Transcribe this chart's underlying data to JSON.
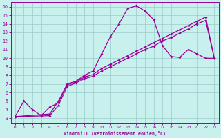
{
  "xlabel": "Windchill (Refroidissement éolien,°C)",
  "bg_color": "#c8f0ec",
  "line_color": "#990099",
  "grid_color": "#99cccc",
  "xlim": [
    -0.5,
    23.5
  ],
  "ylim": [
    2.5,
    16.5
  ],
  "xticks": [
    0,
    1,
    2,
    3,
    4,
    5,
    6,
    7,
    8,
    9,
    10,
    11,
    12,
    13,
    14,
    15,
    16,
    17,
    18,
    19,
    20,
    21,
    22,
    23
  ],
  "yticks": [
    3,
    4,
    5,
    6,
    7,
    8,
    9,
    10,
    11,
    12,
    13,
    14,
    15,
    16
  ],
  "line1_x": [
    0,
    1,
    2,
    3,
    4,
    5,
    6,
    7,
    8,
    9,
    10,
    11,
    12,
    13,
    14,
    15,
    16,
    17,
    18,
    19,
    20,
    21,
    22,
    23
  ],
  "line1_y": [
    3.2,
    5.0,
    4.0,
    3.3,
    4.3,
    4.8,
    7.0,
    7.3,
    8.0,
    8.5,
    10.5,
    12.5,
    14.0,
    15.8,
    16.1,
    15.5,
    14.5,
    11.5,
    10.2,
    10.1,
    11.0,
    10.5,
    10.0,
    10.0
  ],
  "line2_x": [
    0,
    4,
    5,
    6,
    7,
    8,
    9,
    10,
    11,
    12,
    13,
    14,
    15,
    16,
    17,
    18,
    19,
    20,
    21,
    22,
    23
  ],
  "line2_y": [
    3.2,
    3.3,
    4.5,
    6.7,
    7.1,
    7.6,
    7.9,
    8.5,
    9.0,
    9.5,
    10.0,
    10.5,
    11.0,
    11.4,
    12.0,
    12.4,
    12.9,
    13.4,
    14.0,
    14.4,
    10.0
  ],
  "line3_x": [
    0,
    4,
    5,
    6,
    7,
    8,
    9,
    10,
    11,
    12,
    13,
    14,
    15,
    16,
    17,
    18,
    19,
    20,
    21,
    22,
    23
  ],
  "line3_y": [
    3.2,
    3.5,
    5.0,
    6.9,
    7.2,
    7.8,
    8.1,
    8.8,
    9.3,
    9.8,
    10.3,
    10.8,
    11.3,
    11.8,
    12.3,
    12.8,
    13.3,
    13.8,
    14.3,
    14.8,
    10.0
  ]
}
